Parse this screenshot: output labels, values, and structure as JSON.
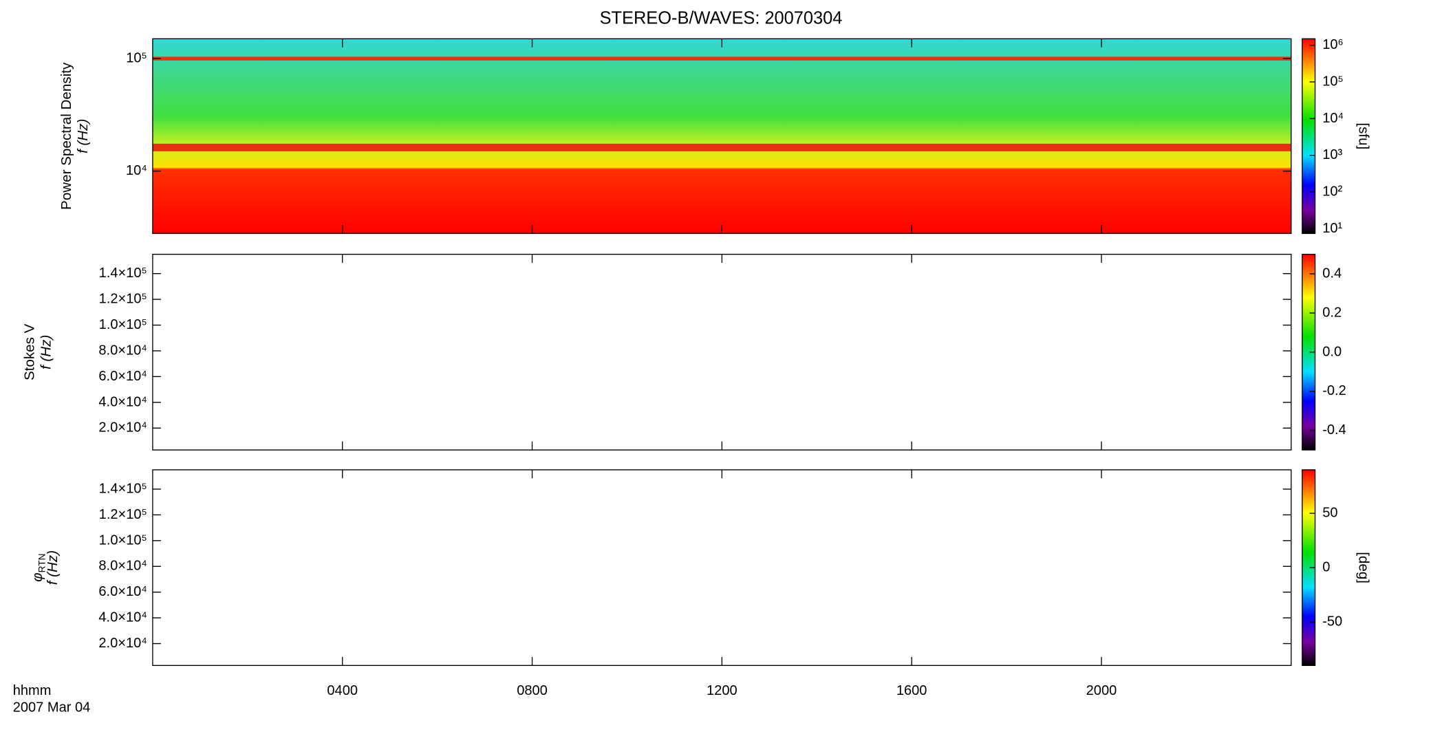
{
  "chart_data": [
    {
      "type": "heatmap",
      "title": "STEREO-B/WAVES: 20070304",
      "ylabel": [
        "Power Spectral Density",
        "f (Hz)"
      ],
      "ylog": true,
      "ylim": [
        2790,
        150000
      ],
      "yticks": [
        {
          "value": 10000,
          "label": "10⁴"
        },
        {
          "value": 100000,
          "label": "10⁵"
        }
      ],
      "xlim": [
        0,
        24
      ],
      "colorbar": {
        "log": true,
        "clim": [
          7.4,
          1500000
        ],
        "label": "[sfu]",
        "ticks": [
          {
            "value": 10,
            "label": "10¹"
          },
          {
            "value": 100,
            "label": "10²"
          },
          {
            "value": 1000,
            "label": "10³"
          },
          {
            "value": 10000,
            "label": "10⁴"
          },
          {
            "value": 100000,
            "label": "10⁵"
          },
          {
            "value": 1000000,
            "label": "10⁶"
          }
        ]
      }
    },
    {
      "type": "heatmap",
      "ylabel": [
        "Stokes V",
        "f (Hz)"
      ],
      "ylog": false,
      "ylim": [
        3000,
        155000
      ],
      "yticks": [
        {
          "value": 20000,
          "label": "2.0×10⁴"
        },
        {
          "value": 40000,
          "label": "4.0×10⁴"
        },
        {
          "value": 60000,
          "label": "6.0×10⁴"
        },
        {
          "value": 80000,
          "label": "8.0×10⁴"
        },
        {
          "value": 100000,
          "label": "1.0×10⁵"
        },
        {
          "value": 120000,
          "label": "1.2×10⁵"
        },
        {
          "value": 140000,
          "label": "1.4×10⁵"
        }
      ],
      "xlim": [
        0,
        24
      ],
      "colorbar": {
        "log": false,
        "clim": [
          -0.5,
          0.5
        ],
        "ticks": [
          -0.4,
          -0.2,
          {
            "value": 0,
            "label": "0.0"
          },
          0.2,
          0.4
        ]
      }
    },
    {
      "type": "heatmap",
      "ylabel": [
        "φ",
        "RTN",
        "f (Hz)"
      ],
      "ylog": false,
      "ylim": [
        3000,
        155000
      ],
      "yticks": [
        {
          "value": 20000,
          "label": "2.0×10⁴"
        },
        {
          "value": 40000,
          "label": "4.0×10⁴"
        },
        {
          "value": 60000,
          "label": "6.0×10⁴"
        },
        {
          "value": 80000,
          "label": "8.0×10⁴"
        },
        {
          "value": 100000,
          "label": "1.0×10⁵"
        },
        {
          "value": 120000,
          "label": "1.2×10⁵"
        },
        {
          "value": 140000,
          "label": "1.4×10⁵"
        }
      ],
      "xlim": [
        0,
        24
      ],
      "xticks": [
        {
          "value": 4,
          "label": "0400"
        },
        {
          "value": 8,
          "label": "0800"
        },
        {
          "value": 12,
          "label": "1200"
        },
        {
          "value": 16,
          "label": "1600"
        },
        {
          "value": 20,
          "label": "2000"
        }
      ],
      "xlabel": [
        "hhmm",
        "2007 Mar 04"
      ],
      "colorbar": {
        "log": false,
        "clim": [
          -90,
          90
        ],
        "label": "[deg]",
        "ticks": [
          -50,
          0,
          50
        ]
      }
    }
  ]
}
